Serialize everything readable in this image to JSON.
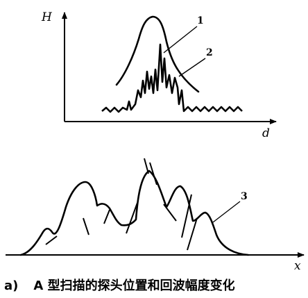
{
  "top_panel": {
    "y_axis_label": "H",
    "x_axis_label": "d",
    "callouts": [
      "1",
      "2"
    ]
  },
  "bottom_panel": {
    "x_axis_label": "x",
    "callouts": [
      "3"
    ]
  },
  "caption": {
    "tag": "a)",
    "text": "A 型扫描的探头位置和回波幅度变化"
  }
}
